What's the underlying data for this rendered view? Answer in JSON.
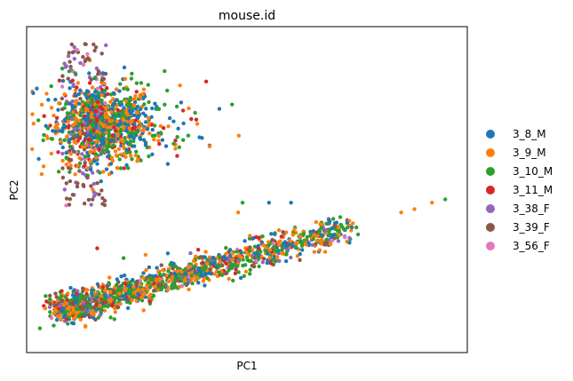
{
  "chart_data": {
    "type": "scatter",
    "title": "mouse.id",
    "xlabel": "PC1",
    "ylabel": "PC2",
    "xlim": [
      0,
      100
    ],
    "ylim": [
      0,
      100
    ],
    "ticks": "none",
    "grid": false,
    "legend": {
      "placement": "right",
      "marker": "circle"
    },
    "series": [
      {
        "name": "3_8_M",
        "color": "#1f77b4"
      },
      {
        "name": "3_9_M",
        "color": "#ff7f0e"
      },
      {
        "name": "3_10_M",
        "color": "#2ca02c"
      },
      {
        "name": "3_11_M",
        "color": "#d62728"
      },
      {
        "name": "3_38_F",
        "color": "#9467bd"
      },
      {
        "name": "3_39_F",
        "color": "#8c564b"
      },
      {
        "name": "3_56_F",
        "color": "#e377c2"
      }
    ],
    "clusters": [
      {
        "label": "upper",
        "center": [
          17,
          70
        ],
        "spread": [
          6,
          6
        ],
        "share": 0.45
      },
      {
        "label": "lower",
        "band_from": [
          8,
          13
        ],
        "band_to": [
          72,
          38
        ],
        "share": 0.55
      }
    ]
  }
}
